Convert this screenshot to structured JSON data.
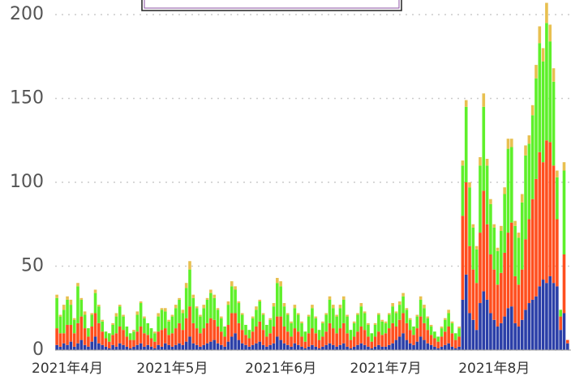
{
  "chart_data": {
    "type": "stacked_bar",
    "categories": [
      null,
      null,
      null,
      "2021年4月",
      null,
      null,
      null,
      null,
      null,
      null,
      null,
      null,
      null,
      null,
      null,
      null,
      null,
      null,
      null,
      null,
      null,
      null,
      null,
      null,
      null,
      null,
      null,
      null,
      null,
      null,
      null,
      null,
      null,
      "2021年5月",
      null,
      null,
      null,
      null,
      null,
      null,
      null,
      null,
      null,
      null,
      null,
      null,
      null,
      null,
      null,
      null,
      null,
      null,
      null,
      null,
      null,
      null,
      null,
      null,
      null,
      null,
      null,
      null,
      null,
      null,
      "2021年6月",
      null,
      null,
      null,
      null,
      null,
      null,
      null,
      null,
      null,
      null,
      null,
      null,
      null,
      null,
      null,
      null,
      null,
      null,
      null,
      null,
      null,
      null,
      null,
      null,
      null,
      null,
      null,
      null,
      null,
      "2021年7月",
      null,
      null,
      null,
      null,
      null,
      null,
      null,
      null,
      null,
      null,
      null,
      null,
      null,
      null,
      null,
      null,
      null,
      null,
      null,
      null,
      null,
      null,
      null,
      null,
      null,
      null,
      null,
      null,
      null,
      null,
      "2021年8月",
      null,
      null,
      null,
      null,
      null,
      null,
      null,
      null,
      null,
      null,
      null,
      null,
      null,
      null,
      null,
      null,
      null,
      null,
      null,
      null,
      null
    ],
    "series": [
      {
        "color": "#2b3fa8",
        "values": [
          3,
          2,
          4,
          3,
          5,
          2,
          4,
          6,
          3,
          2,
          5,
          8,
          4,
          3,
          2,
          1,
          3,
          2,
          4,
          3,
          2,
          1,
          2,
          3,
          4,
          2,
          3,
          2,
          1,
          3,
          2,
          4,
          3,
          2,
          3,
          4,
          3,
          5,
          8,
          4,
          3,
          2,
          3,
          4,
          5,
          6,
          4,
          3,
          2,
          5,
          8,
          10,
          6,
          4,
          3,
          2,
          3,
          4,
          5,
          3,
          2,
          3,
          4,
          8,
          6,
          4,
          3,
          2,
          4,
          3,
          2,
          1,
          2,
          3,
          2,
          1,
          2,
          3,
          4,
          3,
          2,
          3,
          4,
          2,
          1,
          2,
          3,
          4,
          3,
          2,
          1,
          2,
          3,
          2,
          2,
          3,
          4,
          6,
          8,
          10,
          6,
          4,
          3,
          5,
          8,
          6,
          4,
          3,
          2,
          1,
          2,
          3,
          4,
          2,
          1,
          2,
          30,
          45,
          22,
          18,
          12,
          28,
          35,
          30,
          22,
          18,
          14,
          16,
          20,
          25,
          26,
          16,
          14,
          18,
          24,
          28,
          30,
          32,
          38,
          42,
          40,
          44,
          40,
          38,
          12,
          22,
          4
        ]
      },
      {
        "color": "#ff4f1f",
        "values": [
          10,
          8,
          6,
          12,
          10,
          8,
          12,
          14,
          10,
          6,
          9,
          14,
          12,
          8,
          5,
          4,
          6,
          8,
          10,
          9,
          6,
          5,
          4,
          8,
          10,
          8,
          6,
          5,
          4,
          8,
          10,
          9,
          6,
          8,
          10,
          12,
          9,
          14,
          18,
          12,
          10,
          8,
          10,
          12,
          14,
          12,
          10,
          8,
          6,
          10,
          14,
          12,
          10,
          8,
          6,
          5,
          8,
          10,
          12,
          9,
          6,
          7,
          10,
          12,
          14,
          10,
          8,
          6,
          9,
          8,
          6,
          4,
          8,
          10,
          8,
          5,
          6,
          8,
          12,
          10,
          8,
          10,
          12,
          8,
          5,
          6,
          8,
          10,
          9,
          6,
          4,
          6,
          8,
          7,
          8,
          10,
          12,
          8,
          10,
          12,
          10,
          8,
          6,
          8,
          12,
          10,
          8,
          6,
          5,
          4,
          6,
          8,
          10,
          8,
          5,
          6,
          50,
          55,
          40,
          30,
          28,
          42,
          60,
          45,
          35,
          30,
          25,
          30,
          38,
          45,
          50,
          28,
          25,
          30,
          42,
          50,
          60,
          70,
          80,
          70,
          85,
          80,
          70,
          40,
          8,
          35,
          2
        ]
      },
      {
        "color": "#5ef02a",
        "values": [
          18,
          10,
          14,
          15,
          12,
          8,
          22,
          10,
          8,
          5,
          7,
          12,
          10,
          6,
          4,
          5,
          6,
          10,
          12,
          8,
          6,
          4,
          5,
          10,
          14,
          9,
          7,
          6,
          5,
          9,
          12,
          10,
          8,
          10,
          12,
          14,
          10,
          18,
          22,
          15,
          12,
          10,
          12,
          14,
          15,
          13,
          10,
          8,
          6,
          12,
          16,
          14,
          12,
          9,
          6,
          5,
          8,
          10,
          12,
          9,
          7,
          8,
          12,
          20,
          18,
          12,
          10,
          8,
          12,
          10,
          8,
          6,
          10,
          12,
          9,
          6,
          8,
          10,
          14,
          12,
          10,
          12,
          14,
          10,
          6,
          8,
          10,
          12,
          10,
          7,
          5,
          7,
          10,
          8,
          6,
          8,
          10,
          8,
          9,
          10,
          8,
          6,
          5,
          7,
          10,
          9,
          7,
          5,
          4,
          3,
          5,
          7,
          8,
          6,
          4,
          5,
          30,
          45,
          35,
          25,
          20,
          40,
          50,
          35,
          30,
          25,
          20,
          25,
          35,
          50,
          45,
          30,
          28,
          40,
          50,
          45,
          50,
          60,
          65,
          60,
          70,
          60,
          50,
          25,
          4,
          50,
          0
        ]
      },
      {
        "color": "#e8c050",
        "values": [
          2,
          1,
          3,
          2,
          3,
          1,
          2,
          1,
          2,
          0,
          1,
          2,
          1,
          1,
          0,
          0,
          1,
          2,
          1,
          1,
          0,
          0,
          1,
          2,
          1,
          1,
          0,
          0,
          1,
          2,
          1,
          2,
          1,
          1,
          2,
          1,
          2,
          3,
          5,
          2,
          1,
          1,
          2,
          1,
          2,
          2,
          1,
          1,
          0,
          2,
          3,
          2,
          1,
          1,
          0,
          0,
          1,
          2,
          1,
          1,
          0,
          1,
          2,
          3,
          3,
          2,
          1,
          1,
          2,
          1,
          1,
          0,
          1,
          2,
          1,
          0,
          1,
          1,
          2,
          2,
          1,
          2,
          2,
          1,
          0,
          1,
          1,
          2,
          1,
          1,
          0,
          1,
          1,
          1,
          1,
          1,
          2,
          1,
          2,
          2,
          1,
          1,
          0,
          1,
          2,
          2,
          1,
          1,
          0,
          0,
          1,
          1,
          2,
          1,
          0,
          1,
          3,
          4,
          3,
          2,
          2,
          5,
          8,
          4,
          3,
          2,
          2,
          3,
          4,
          6,
          5,
          3,
          3,
          5,
          6,
          5,
          6,
          8,
          10,
          8,
          12,
          10,
          8,
          4,
          0,
          5,
          0
        ]
      }
    ],
    "ylim": [
      0,
      200
    ],
    "yticks": [
      0,
      50,
      100,
      150,
      200
    ],
    "grid": true
  }
}
